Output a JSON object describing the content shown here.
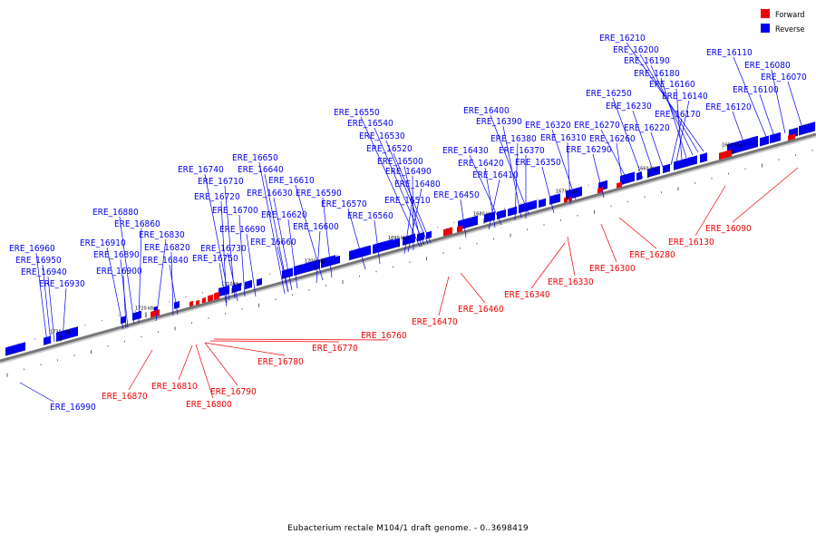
{
  "legend": [
    {
      "label": "Forward",
      "color": "#ee0000"
    },
    {
      "label": "Reverse",
      "color": "#0000ee"
    }
  ],
  "caption": "Eubacterium rectale M104/1 draft genome. - 0..3698419",
  "colors": {
    "forward": "#ee0000",
    "reverse": "#0000ee",
    "backbone": "#777777"
  },
  "ticks": [
    "1650 kbp",
    "1660 kbp",
    "1670 kbp",
    "1680 kbp",
    "1690 kbp",
    "1700 kbp",
    "1710 kbp",
    "1720 kbp",
    "1730 kbp"
  ],
  "reverse_genes": [
    "ERE_16070",
    "ERE_16080",
    "ERE_16100",
    "ERE_16110",
    "ERE_16120",
    "ERE_16140",
    "ERE_16160",
    "ERE_16170",
    "ERE_16180",
    "ERE_16190",
    "ERE_16200",
    "ERE_16210",
    "ERE_16220",
    "ERE_16230",
    "ERE_16250",
    "ERE_16260",
    "ERE_16270",
    "ERE_16290",
    "ERE_16310",
    "ERE_16320",
    "ERE_16350",
    "ERE_16370",
    "ERE_16380",
    "ERE_16390",
    "ERE_16400",
    "ERE_16410",
    "ERE_16420",
    "ERE_16430",
    "ERE_16450",
    "ERE_16480",
    "ERE_16490",
    "ERE_16500",
    "ERE_16510",
    "ERE_16520",
    "ERE_16530",
    "ERE_16540",
    "ERE_16550",
    "ERE_16560",
    "ERE_16570",
    "ERE_16590",
    "ERE_16600",
    "ERE_16610",
    "ERE_16620",
    "ERE_16630",
    "ERE_16640",
    "ERE_16650",
    "ERE_16660",
    "ERE_16690",
    "ERE_16700",
    "ERE_16710",
    "ERE_16720",
    "ERE_16730",
    "ERE_16740",
    "ERE_16750",
    "ERE_16820",
    "ERE_16830",
    "ERE_16840",
    "ERE_16860",
    "ERE_16880",
    "ERE_16890",
    "ERE_16900",
    "ERE_16910",
    "ERE_16930",
    "ERE_16940",
    "ERE_16950",
    "ERE_16960",
    "ERE_16990"
  ],
  "forward_genes": [
    "ERE_16090",
    "ERE_16130",
    "ERE_16280",
    "ERE_16300",
    "ERE_16330",
    "ERE_16340",
    "ERE_16460",
    "ERE_16470",
    "ERE_16760",
    "ERE_16770",
    "ERE_16780",
    "ERE_16790",
    "ERE_16800",
    "ERE_16810",
    "ERE_16870"
  ]
}
